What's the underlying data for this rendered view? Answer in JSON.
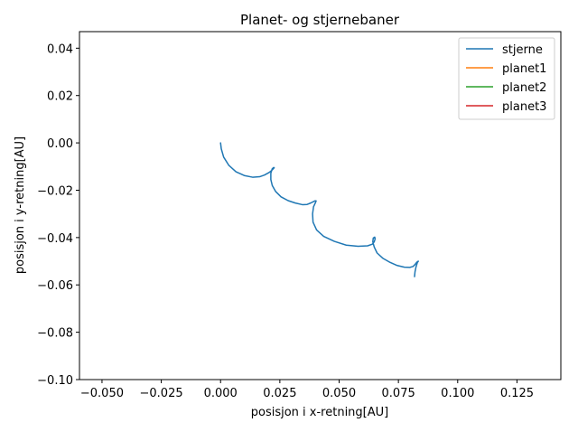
{
  "chart_data": {
    "type": "line",
    "title": "Planet- og stjernebaner",
    "xlabel": "posisjon i x-retning[AU]",
    "ylabel": "posisjon i y-retning[AU]",
    "xlim": [
      -0.0595,
      0.1435
    ],
    "ylim": [
      -0.1,
      0.047
    ],
    "xticks": [
      -0.05,
      -0.025,
      0.0,
      0.025,
      0.05,
      0.075,
      0.1,
      0.125
    ],
    "xtick_labels": [
      "−0.050",
      "−0.025",
      "0.000",
      "0.025",
      "0.050",
      "0.075",
      "0.100",
      "0.125"
    ],
    "yticks": [
      -0.1,
      -0.08,
      -0.06,
      -0.04,
      -0.02,
      0.0,
      0.02,
      0.04
    ],
    "ytick_labels": [
      "−0.10",
      "−0.08",
      "−0.06",
      "−0.04",
      "−0.02",
      "0.00",
      "0.02",
      "0.04"
    ],
    "grid": false,
    "legend_position": "top-right",
    "series": [
      {
        "name": "stjerne",
        "color": "#1f77b4",
        "x": [
          0.0,
          0.0003,
          0.0013,
          0.0035,
          0.0065,
          0.01,
          0.0135,
          0.0165,
          0.0185,
          0.0205,
          0.0215,
          0.0222,
          0.0226,
          0.0224,
          0.0218,
          0.0212,
          0.0212,
          0.0218,
          0.0232,
          0.0255,
          0.0285,
          0.0315,
          0.0345,
          0.0365,
          0.038,
          0.0392,
          0.0398,
          0.0403,
          0.04,
          0.0392,
          0.0388,
          0.039,
          0.0405,
          0.0435,
          0.048,
          0.053,
          0.058,
          0.062,
          0.064,
          0.0648,
          0.0652,
          0.065,
          0.0644,
          0.0642,
          0.0648,
          0.066,
          0.0685,
          0.0715,
          0.0745,
          0.0775,
          0.0798,
          0.0812,
          0.082,
          0.0826,
          0.0831,
          0.0834,
          0.083,
          0.0824,
          0.082,
          0.0818
        ],
        "y": [
          0.0,
          -0.0025,
          -0.006,
          -0.0095,
          -0.0122,
          -0.0138,
          -0.0145,
          -0.0143,
          -0.0136,
          -0.0125,
          -0.0117,
          -0.011,
          -0.0105,
          -0.0104,
          -0.0109,
          -0.0128,
          -0.0155,
          -0.018,
          -0.0205,
          -0.0228,
          -0.0244,
          -0.0254,
          -0.0261,
          -0.026,
          -0.0254,
          -0.0248,
          -0.0245,
          -0.0245,
          -0.0253,
          -0.027,
          -0.03,
          -0.0335,
          -0.0368,
          -0.0395,
          -0.0416,
          -0.0432,
          -0.0437,
          -0.0435,
          -0.0428,
          -0.0418,
          -0.0405,
          -0.0398,
          -0.0402,
          -0.0418,
          -0.044,
          -0.0465,
          -0.0488,
          -0.0505,
          -0.0518,
          -0.0525,
          -0.0526,
          -0.0522,
          -0.0514,
          -0.0506,
          -0.0501,
          -0.05,
          -0.0505,
          -0.0525,
          -0.0545,
          -0.0565
        ]
      },
      {
        "name": "planet1",
        "color": "#ff7f0e",
        "x": [],
        "y": []
      },
      {
        "name": "planet2",
        "color": "#2ca02c",
        "x": [],
        "y": []
      },
      {
        "name": "planet3",
        "color": "#d62728",
        "x": [],
        "y": []
      }
    ]
  }
}
